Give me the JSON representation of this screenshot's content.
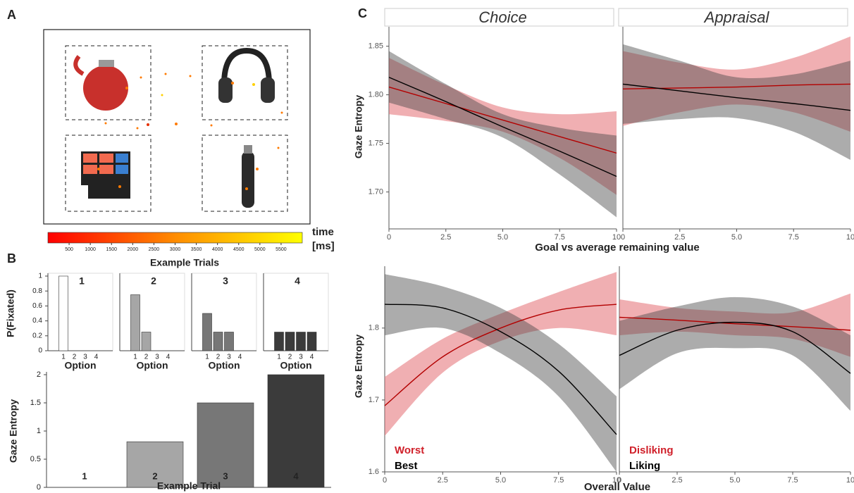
{
  "panel_labels": [
    "A",
    "B",
    "C"
  ],
  "chart_data": [
    {
      "type": "colorbar",
      "title_lines": [
        "time",
        "[ms]"
      ],
      "colors": [
        "#ff0000",
        "#ff8c00",
        "#ffff00"
      ],
      "xlim": [
        0,
        6000
      ],
      "xticks": [
        500,
        1000,
        1500,
        2000,
        2500,
        3000,
        3500,
        4000,
        4500,
        5000,
        5500
      ]
    },
    {
      "type": "bar-grid",
      "title": "Example Trials",
      "ylabel": "P(Fixated)",
      "xlabel": "Option",
      "categories": [
        "1",
        "2",
        "3",
        "4"
      ],
      "ylim": [
        0,
        1
      ],
      "yticks": [
        0,
        0.2,
        0.4,
        0.6,
        0.8,
        1
      ],
      "panels": [
        {
          "title": "1",
          "color": "#ffffff",
          "values": [
            1,
            0,
            0,
            0
          ]
        },
        {
          "title": "2",
          "color": "#a6a6a6",
          "values": [
            0.75,
            0.25,
            0,
            0
          ]
        },
        {
          "title": "3",
          "color": "#777777",
          "values": [
            0.5,
            0.25,
            0.25,
            0
          ]
        },
        {
          "title": "4",
          "color": "#3b3b3b",
          "values": [
            0.25,
            0.25,
            0.25,
            0.25
          ]
        }
      ]
    },
    {
      "type": "bar",
      "ylabel": "Gaze Entropy",
      "xlabel": "Example Trial",
      "categories": [
        "1",
        "2",
        "3",
        "4"
      ],
      "values": [
        0,
        0.81,
        1.5,
        2
      ],
      "colors": [
        "#ffffff",
        "#a6a6a6",
        "#777777",
        "#3b3b3b"
      ],
      "ylim": [
        0,
        2
      ],
      "yticks": [
        0,
        0.5,
        1,
        1.5,
        2
      ]
    },
    {
      "type": "ribbon",
      "ylabel": "Gaze Entropy",
      "xlabel": "Goal vs average remaining value",
      "x": [
        0,
        2.5,
        5,
        7.5,
        10
      ],
      "xlim": [
        0,
        10
      ],
      "xticks": [
        0,
        2.5,
        {
          "value": 5,
          "label": "5.0"
        },
        7.5,
        10
      ],
      "ylim": [
        1.662,
        1.87
      ],
      "yticks": [
        {
          "value": 1.7,
          "label": "1.70"
        },
        1.75,
        {
          "value": 1.8,
          "label": "1.80"
        },
        1.85
      ],
      "facets": [
        {
          "title": "Choice",
          "series": [
            {
              "color": "#b30000",
              "fill": "rgba(228,110,115,0.55)",
              "values": [
                1.808,
                1.791,
                1.774,
                1.757,
                1.74
              ],
              "lower": [
                1.78,
                1.773,
                1.762,
                1.735,
                1.697
              ],
              "upper": [
                1.838,
                1.81,
                1.787,
                1.78,
                1.783
              ]
            },
            {
              "color": "#000000",
              "fill": "rgba(70,70,70,0.45)",
              "values": [
                1.818,
                1.793,
                1.767,
                1.742,
                1.716
              ],
              "lower": [
                1.792,
                1.775,
                1.756,
                1.718,
                1.674
              ],
              "upper": [
                1.845,
                1.811,
                1.78,
                1.766,
                1.758
              ]
            }
          ]
        },
        {
          "title": "Appraisal",
          "series": [
            {
              "color": "#b30000",
              "fill": "rgba(228,110,115,0.55)",
              "values": [
                1.806,
                1.807,
                1.808,
                1.81,
                1.811
              ],
              "lower": [
                1.768,
                1.782,
                1.79,
                1.782,
                1.762
              ],
              "upper": [
                1.845,
                1.833,
                1.826,
                1.838,
                1.86
              ]
            },
            {
              "color": "#000000",
              "fill": "rgba(70,70,70,0.45)",
              "values": [
                1.811,
                1.804,
                1.797,
                1.791,
                1.784
              ],
              "lower": [
                1.77,
                1.775,
                1.776,
                1.762,
                1.733
              ],
              "upper": [
                1.852,
                1.835,
                1.818,
                1.821,
                1.835
              ]
            }
          ]
        }
      ]
    },
    {
      "type": "ribbon",
      "ylabel": "Gaze Entropy",
      "xlabel": "Overall Value",
      "x": [
        0,
        2.5,
        5,
        7.5,
        10
      ],
      "xlim": [
        0,
        10
      ],
      "xticks": [
        0,
        2.5,
        {
          "value": 5,
          "label": "5.0"
        },
        7.5,
        10
      ],
      "ylim": [
        1.6,
        1.886
      ],
      "yticks": [
        1.6,
        1.7,
        1.8
      ],
      "facets": [
        {
          "series": [
            {
              "name": "Worst",
              "color": "#b30000",
              "fill": "rgba(228,110,115,0.55)",
              "values": [
                1.692,
                1.76,
                1.8,
                1.825,
                1.833
              ],
              "lower": [
                1.65,
                1.738,
                1.782,
                1.8,
                1.79
              ],
              "upper": [
                1.732,
                1.785,
                1.82,
                1.85,
                1.878
              ]
            },
            {
              "name": "Best",
              "color": "#000000",
              "fill": "rgba(70,70,70,0.45)",
              "values": [
                1.833,
                1.828,
                1.795,
                1.74,
                1.652
              ],
              "lower": [
                1.79,
                1.8,
                1.765,
                1.705,
                1.6
              ],
              "upper": [
                1.875,
                1.858,
                1.828,
                1.778,
                1.705
              ]
            }
          ]
        },
        {
          "series": [
            {
              "name": "Disliking",
              "color": "#b30000",
              "fill": "rgba(228,110,115,0.55)",
              "values": [
                1.815,
                1.811,
                1.806,
                1.802,
                1.797
              ],
              "lower": [
                1.79,
                1.795,
                1.79,
                1.785,
                1.76
              ],
              "upper": [
                1.84,
                1.828,
                1.823,
                1.822,
                1.848
              ]
            },
            {
              "name": "Liking",
              "color": "#000000",
              "fill": "rgba(70,70,70,0.45)",
              "values": [
                1.762,
                1.797,
                1.808,
                1.795,
                1.737
              ],
              "lower": [
                1.715,
                1.765,
                1.772,
                1.762,
                1.685
              ],
              "upper": [
                1.81,
                1.83,
                1.843,
                1.83,
                1.79
              ]
            }
          ]
        }
      ]
    }
  ]
}
